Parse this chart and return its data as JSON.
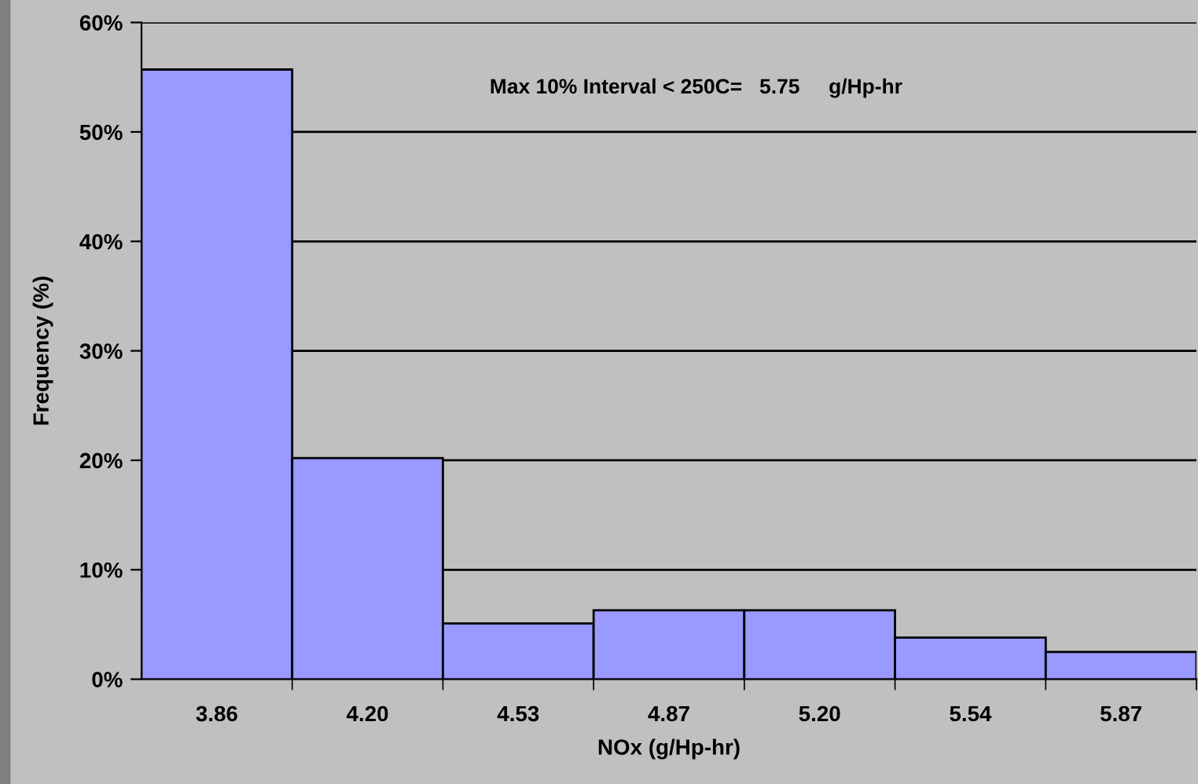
{
  "chart_data": {
    "type": "bar",
    "categories": [
      "3.86",
      "4.20",
      "4.53",
      "4.87",
      "5.20",
      "5.54",
      "5.87"
    ],
    "values": [
      55.7,
      20.2,
      5.1,
      6.3,
      6.3,
      3.8,
      2.5
    ],
    "color": "#9999ff",
    "xlabel": "NOx (g/Hp-hr)",
    "ylabel": "Frequency (%)",
    "ylim": [
      0,
      60
    ],
    "yticks": [
      {
        "value": 0,
        "label": "0%"
      },
      {
        "value": 10,
        "label": "10%"
      },
      {
        "value": 20,
        "label": "20%"
      },
      {
        "value": 30,
        "label": "30%"
      },
      {
        "value": 40,
        "label": "40%"
      },
      {
        "value": 50,
        "label": "50%"
      },
      {
        "value": 60,
        "label": "60%"
      }
    ],
    "grid": "y",
    "annotations": [
      "Max 10% Interval < 250C=   5.75     g/Hp-hr"
    ]
  }
}
